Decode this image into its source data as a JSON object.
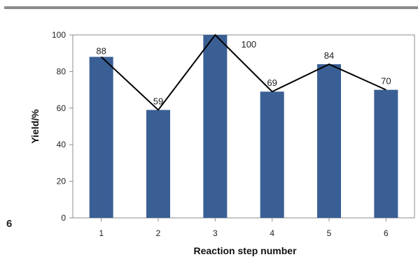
{
  "side_label": "6",
  "chart_data": {
    "type": "bar",
    "categories": [
      "1",
      "2",
      "3",
      "4",
      "5",
      "6"
    ],
    "values": [
      88,
      59,
      100,
      69,
      84,
      70
    ],
    "data_labels": [
      "88",
      "59",
      "100",
      "69",
      "84",
      "70"
    ],
    "overlay_line": true,
    "title": "",
    "xlabel": "Reaction step number",
    "ylabel": "Yield/%",
    "ylim": [
      0,
      100
    ],
    "yticks": [
      "0",
      "20",
      "40",
      "60",
      "80",
      "100"
    ],
    "grid": false,
    "legend": "none",
    "colors": {
      "bar": "#3a5f95",
      "line": "#000000",
      "frame": "#8c8c8c"
    }
  }
}
